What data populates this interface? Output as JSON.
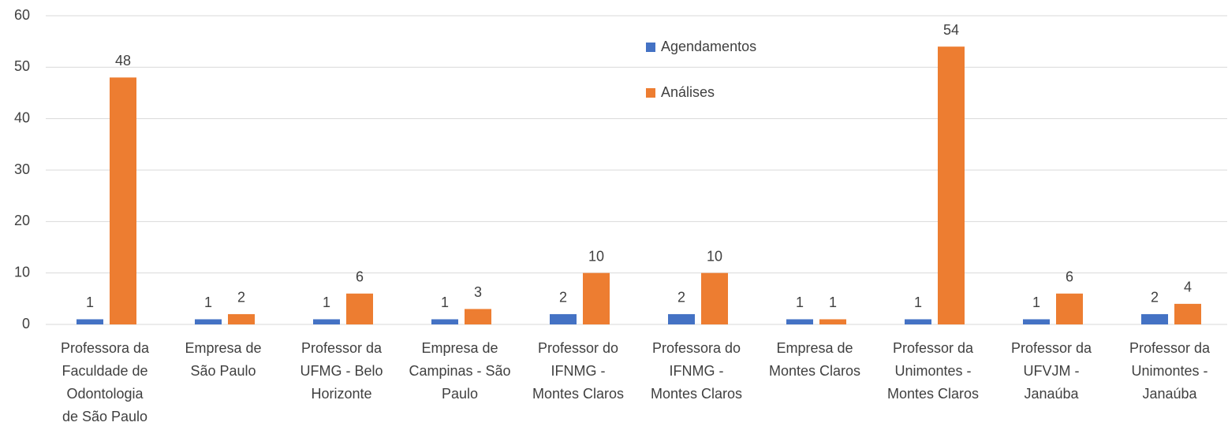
{
  "chart_data": {
    "type": "bar",
    "categories": [
      [
        "Professora da",
        "Faculdade de",
        "Odontologia",
        "de São Paulo"
      ],
      [
        "Empresa de",
        "São Paulo"
      ],
      [
        "Professor da",
        "UFMG - Belo",
        "Horizonte"
      ],
      [
        "Empresa de",
        "Campinas - São",
        "Paulo"
      ],
      [
        "Professor do",
        "IFNMG -",
        "Montes Claros"
      ],
      [
        "Professora do",
        "IFNMG -",
        "Montes Claros"
      ],
      [
        "Empresa de",
        "Montes Claros"
      ],
      [
        "Professor da",
        "Unimontes -",
        "Montes Claros"
      ],
      [
        "Professor da",
        "UFVJM -",
        "Janaúba"
      ],
      [
        "Professor da",
        "Unimontes -",
        "Janaúba"
      ]
    ],
    "series": [
      {
        "name": "Agendamentos",
        "color": "#4472c4",
        "values": [
          1,
          1,
          1,
          1,
          2,
          2,
          1,
          1,
          1,
          2
        ]
      },
      {
        "name": "Análises",
        "color": "#ed7d31",
        "values": [
          48,
          2,
          6,
          3,
          10,
          10,
          1,
          54,
          6,
          4
        ]
      }
    ],
    "ylim": [
      0,
      60
    ],
    "yticks": [
      0,
      10,
      20,
      30,
      40,
      50,
      60
    ],
    "grid": true,
    "legend": "top-center"
  }
}
